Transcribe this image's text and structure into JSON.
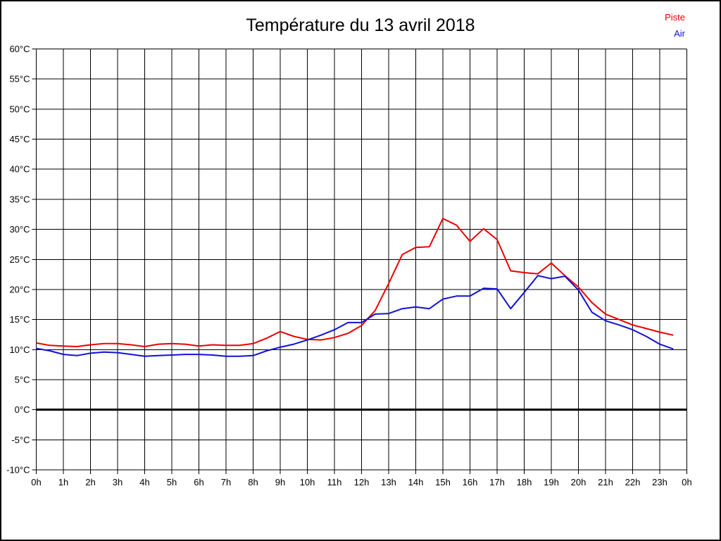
{
  "title": "Température du 13 avril 2018",
  "legend": {
    "items": [
      {
        "label": "Piste",
        "color": "#ee0000"
      },
      {
        "label": "Air",
        "color": "#1111d6"
      }
    ]
  },
  "chart_data": {
    "type": "line",
    "title": "Température du 13 avril 2018",
    "xlabel": "",
    "ylabel": "",
    "xlim": [
      0,
      24
    ],
    "ylim": [
      -10,
      60
    ],
    "ytick_step": 5,
    "grid": true,
    "zero_line_at": 0,
    "legend_position": "top-right",
    "x_tick_labels": [
      "0h",
      "1h",
      "2h",
      "3h",
      "4h",
      "5h",
      "6h",
      "7h",
      "8h",
      "9h",
      "10h",
      "11h",
      "12h",
      "13h",
      "14h",
      "15h",
      "16h",
      "17h",
      "18h",
      "19h",
      "20h",
      "21h",
      "22h",
      "23h",
      "0h"
    ],
    "y_tick_labels": [
      "60°C",
      "55°C",
      "50°C",
      "45°C",
      "40°C",
      "35°C",
      "30°C",
      "25°C",
      "20°C",
      "15°C",
      "10°C",
      "5°C",
      "0°C",
      "-5°C",
      "-10°C"
    ],
    "x_hours": [
      0,
      0.5,
      1,
      1.5,
      2,
      2.5,
      3,
      3.5,
      4,
      4.5,
      5,
      5.5,
      6,
      6.5,
      7,
      7.5,
      8,
      8.5,
      9,
      9.5,
      10,
      10.5,
      11,
      11.5,
      12,
      12.5,
      13,
      13.5,
      14,
      14.5,
      15,
      15.5,
      16,
      16.5,
      17,
      17.5,
      18,
      18.5,
      19,
      19.5,
      20,
      20.5,
      21,
      21.5,
      22,
      22.5,
      23,
      23.5
    ],
    "series": [
      {
        "name": "Piste",
        "color": "#ee0000",
        "values": [
          11.1,
          10.7,
          10.6,
          10.5,
          10.8,
          11.0,
          11.0,
          10.8,
          10.5,
          10.9,
          11.0,
          10.9,
          10.6,
          10.8,
          10.7,
          10.7,
          11.0,
          11.9,
          13.0,
          12.2,
          11.7,
          11.6,
          12.0,
          12.7,
          14.0,
          16.5,
          21.0,
          25.8,
          27.0,
          27.1,
          31.8,
          30.7,
          28.0,
          30.1,
          28.3,
          23.1,
          22.8,
          22.6,
          24.4,
          22.3,
          20.4,
          17.8,
          15.9,
          15.0,
          14.1,
          13.5,
          12.9,
          12.4
        ]
      },
      {
        "name": "Air",
        "color": "#1111d6",
        "values": [
          10.2,
          9.8,
          9.2,
          9.0,
          9.4,
          9.6,
          9.5,
          9.2,
          8.9,
          9.0,
          9.1,
          9.2,
          9.2,
          9.1,
          8.9,
          8.9,
          9.0,
          9.8,
          10.4,
          10.9,
          11.6,
          12.4,
          13.3,
          14.5,
          14.5,
          15.9,
          16.0,
          16.8,
          17.1,
          16.8,
          18.4,
          18.9,
          18.9,
          20.2,
          20.1,
          16.8,
          19.5,
          22.3,
          21.8,
          22.2,
          19.9,
          16.2,
          14.8,
          14.1,
          13.3,
          12.2,
          10.9,
          10.1
        ]
      }
    ]
  }
}
